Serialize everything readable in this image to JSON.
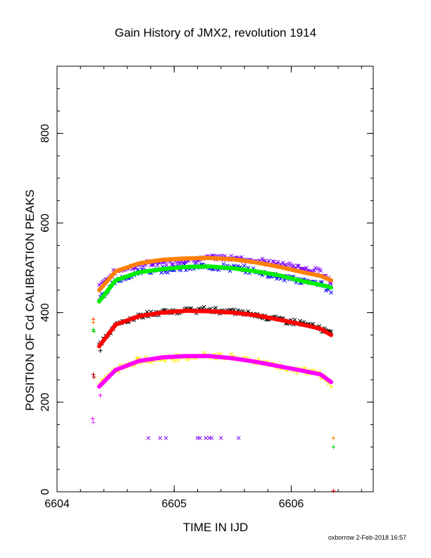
{
  "chart_data": {
    "type": "scatter",
    "title": "Gain History of JMX2, revolution 1914",
    "xlabel": "TIME IN IJD",
    "ylabel": "POSITION OF Cd CALIBRATION PEAKS",
    "xlim": [
      6604,
      6606.7
    ],
    "ylim": [
      0,
      950
    ],
    "x_ticks": [
      6604,
      6605,
      6606
    ],
    "y_ticks": [
      0,
      200,
      400,
      600,
      800
    ],
    "x_tick_labels": [
      "6604",
      "6605",
      "6606"
    ],
    "y_tick_labels": [
      "0",
      "200",
      "400",
      "600",
      "800"
    ],
    "grid": false,
    "legend": "none",
    "x_minor_step": 0.2,
    "y_minor_step": 50,
    "series": [
      {
        "color": "#7f00ff",
        "marker": "x",
        "x": [
          6604.36,
          6604.5,
          6604.7,
          6604.9,
          6605.1,
          6605.3,
          6605.5,
          6605.7,
          6605.9,
          6606.1,
          6606.25,
          6606.34
        ],
        "y": [
          462,
          492,
          506,
          512,
          517,
          522,
          523,
          516,
          508,
          500,
          490,
          470
        ],
        "jitter": 8
      },
      {
        "color": "#ff8000",
        "marker": "dot",
        "x": [
          6604.36,
          6604.5,
          6604.7,
          6604.9,
          6605.1,
          6605.3,
          6605.5,
          6605.7,
          6605.9,
          6606.1,
          6606.25,
          6606.34
        ],
        "y": [
          450,
          492,
          510,
          518,
          521,
          522,
          519,
          512,
          502,
          490,
          482,
          472
        ],
        "jitter": 0
      },
      {
        "color": "#0000ff",
        "marker": "x",
        "x": [
          6604.36,
          6604.5,
          6604.7,
          6604.9,
          6605.1,
          6605.3,
          6605.5,
          6605.7,
          6605.9,
          6606.1,
          6606.25,
          6606.34
        ],
        "y": [
          432,
          470,
          490,
          497,
          500,
          503,
          500,
          492,
          480,
          470,
          464,
          450
        ],
        "jitter": 9
      },
      {
        "color": "#00ee00",
        "marker": "dot",
        "x": [
          6604.36,
          6604.5,
          6604.7,
          6604.9,
          6605.1,
          6605.3,
          6605.5,
          6605.7,
          6605.9,
          6606.1,
          6606.25,
          6606.34
        ],
        "y": [
          425,
          472,
          490,
          497,
          502,
          503,
          499,
          492,
          483,
          470,
          462,
          456
        ],
        "jitter": 0
      },
      {
        "color": "#000000",
        "marker": "x",
        "x": [
          6604.36,
          6604.5,
          6604.7,
          6604.9,
          6605.1,
          6605.3,
          6605.5,
          6605.7,
          6605.9,
          6606.1,
          6606.25,
          6606.34
        ],
        "y": [
          330,
          372,
          392,
          400,
          405,
          406,
          402,
          395,
          385,
          375,
          365,
          352
        ],
        "jitter": 8
      },
      {
        "color": "#ff0000",
        "marker": "dot",
        "x": [
          6604.36,
          6604.5,
          6604.7,
          6604.9,
          6605.1,
          6605.3,
          6605.5,
          6605.7,
          6605.9,
          6606.1,
          6606.25,
          6606.34
        ],
        "y": [
          325,
          373,
          392,
          400,
          404,
          403,
          400,
          394,
          384,
          373,
          364,
          350
        ],
        "jitter": 0
      },
      {
        "color": "#ffee00",
        "marker": "x",
        "x": [
          6604.36,
          6604.5,
          6604.7,
          6604.9,
          6605.1,
          6605.3,
          6605.5,
          6605.7,
          6605.9,
          6606.1,
          6606.25,
          6606.34
        ],
        "y": [
          240,
          275,
          292,
          298,
          302,
          304,
          300,
          292,
          280,
          270,
          262,
          240
        ],
        "jitter": 8
      },
      {
        "color": "#ff00ff",
        "marker": "dot",
        "x": [
          6604.36,
          6604.5,
          6604.7,
          6604.9,
          6605.1,
          6605.3,
          6605.5,
          6605.7,
          6605.9,
          6606.1,
          6606.25,
          6606.34
        ],
        "y": [
          235,
          272,
          292,
          300,
          303,
          303,
          298,
          290,
          280,
          270,
          262,
          245
        ],
        "jitter": 0
      }
    ],
    "extra_points": [
      {
        "color": "#ff4000",
        "marker": "+",
        "x": 6604.31,
        "y": 385
      },
      {
        "color": "#ff8000",
        "marker": "+",
        "x": 6604.31,
        "y": 378
      },
      {
        "color": "#00cc00",
        "marker": "+",
        "x": 6604.31,
        "y": 362
      },
      {
        "color": "#00cc00",
        "marker": "+",
        "x": 6604.315,
        "y": 358
      },
      {
        "color": "#cc0000",
        "marker": "+",
        "x": 6604.31,
        "y": 262
      },
      {
        "color": "#aa0000",
        "marker": "+",
        "x": 6604.315,
        "y": 256
      },
      {
        "color": "#ff00ff",
        "marker": "+",
        "x": 6604.305,
        "y": 163
      },
      {
        "color": "#cc44ff",
        "marker": "+",
        "x": 6604.31,
        "y": 155
      },
      {
        "color": "#000000",
        "marker": "+",
        "x": 6604.37,
        "y": 315
      },
      {
        "color": "#ff00ff",
        "marker": "+",
        "x": 6604.37,
        "y": 215
      },
      {
        "color": "#7f00ff",
        "marker": "x",
        "x": 6604.78,
        "y": 120
      },
      {
        "color": "#7f00ff",
        "marker": "x",
        "x": 6604.88,
        "y": 120
      },
      {
        "color": "#7f00ff",
        "marker": "x",
        "x": 6604.93,
        "y": 120
      },
      {
        "color": "#7f00ff",
        "marker": "x",
        "x": 6605.2,
        "y": 120
      },
      {
        "color": "#7f00ff",
        "marker": "x",
        "x": 6605.22,
        "y": 120
      },
      {
        "color": "#7f00ff",
        "marker": "x",
        "x": 6605.27,
        "y": 120
      },
      {
        "color": "#7f00ff",
        "marker": "x",
        "x": 6605.3,
        "y": 120
      },
      {
        "color": "#7f00ff",
        "marker": "x",
        "x": 6605.32,
        "y": 120
      },
      {
        "color": "#7f00ff",
        "marker": "x",
        "x": 6605.4,
        "y": 120
      },
      {
        "color": "#7f00ff",
        "marker": "x",
        "x": 6605.55,
        "y": 120
      },
      {
        "color": "#ff8000",
        "marker": "+",
        "x": 6606.36,
        "y": 120
      },
      {
        "color": "#00cc00",
        "marker": "+",
        "x": 6606.36,
        "y": 100
      },
      {
        "color": "#ff0000",
        "marker": "+",
        "x": 6606.36,
        "y": 2
      }
    ]
  },
  "footer": "oxborrow  2-Feb-2018 16:57"
}
